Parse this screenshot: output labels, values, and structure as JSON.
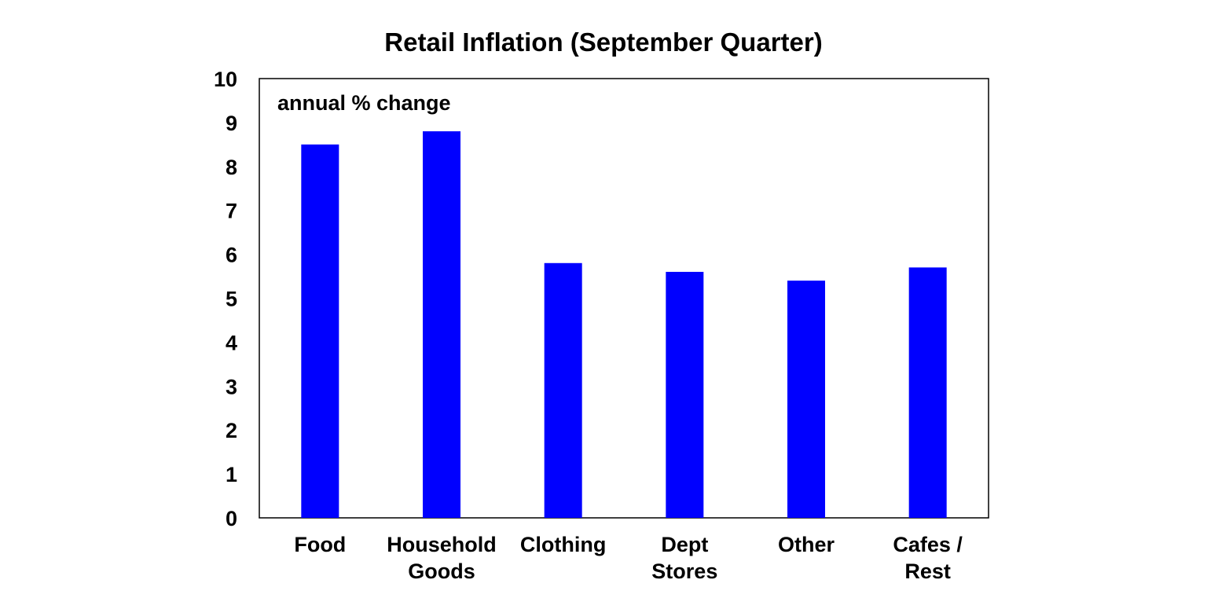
{
  "chart_data": {
    "type": "bar",
    "title": "Retail Inflation (September Quarter)",
    "annotation": "annual % change",
    "categories": [
      [
        "Food"
      ],
      [
        "Household",
        "Goods"
      ],
      [
        "Clothing"
      ],
      [
        "Dept",
        "Stores"
      ],
      [
        "Other"
      ],
      [
        "Cafes /",
        "Rest"
      ]
    ],
    "values": [
      8.5,
      8.8,
      5.8,
      5.6,
      5.4,
      5.7
    ],
    "ylim": [
      0,
      10
    ],
    "yticks": [
      "0",
      "1",
      "2",
      "3",
      "4",
      "5",
      "6",
      "7",
      "8",
      "9",
      "10"
    ],
    "xlabel": "",
    "ylabel": "",
    "grid": false,
    "legend": "none",
    "bar_color": "#0000ff"
  }
}
